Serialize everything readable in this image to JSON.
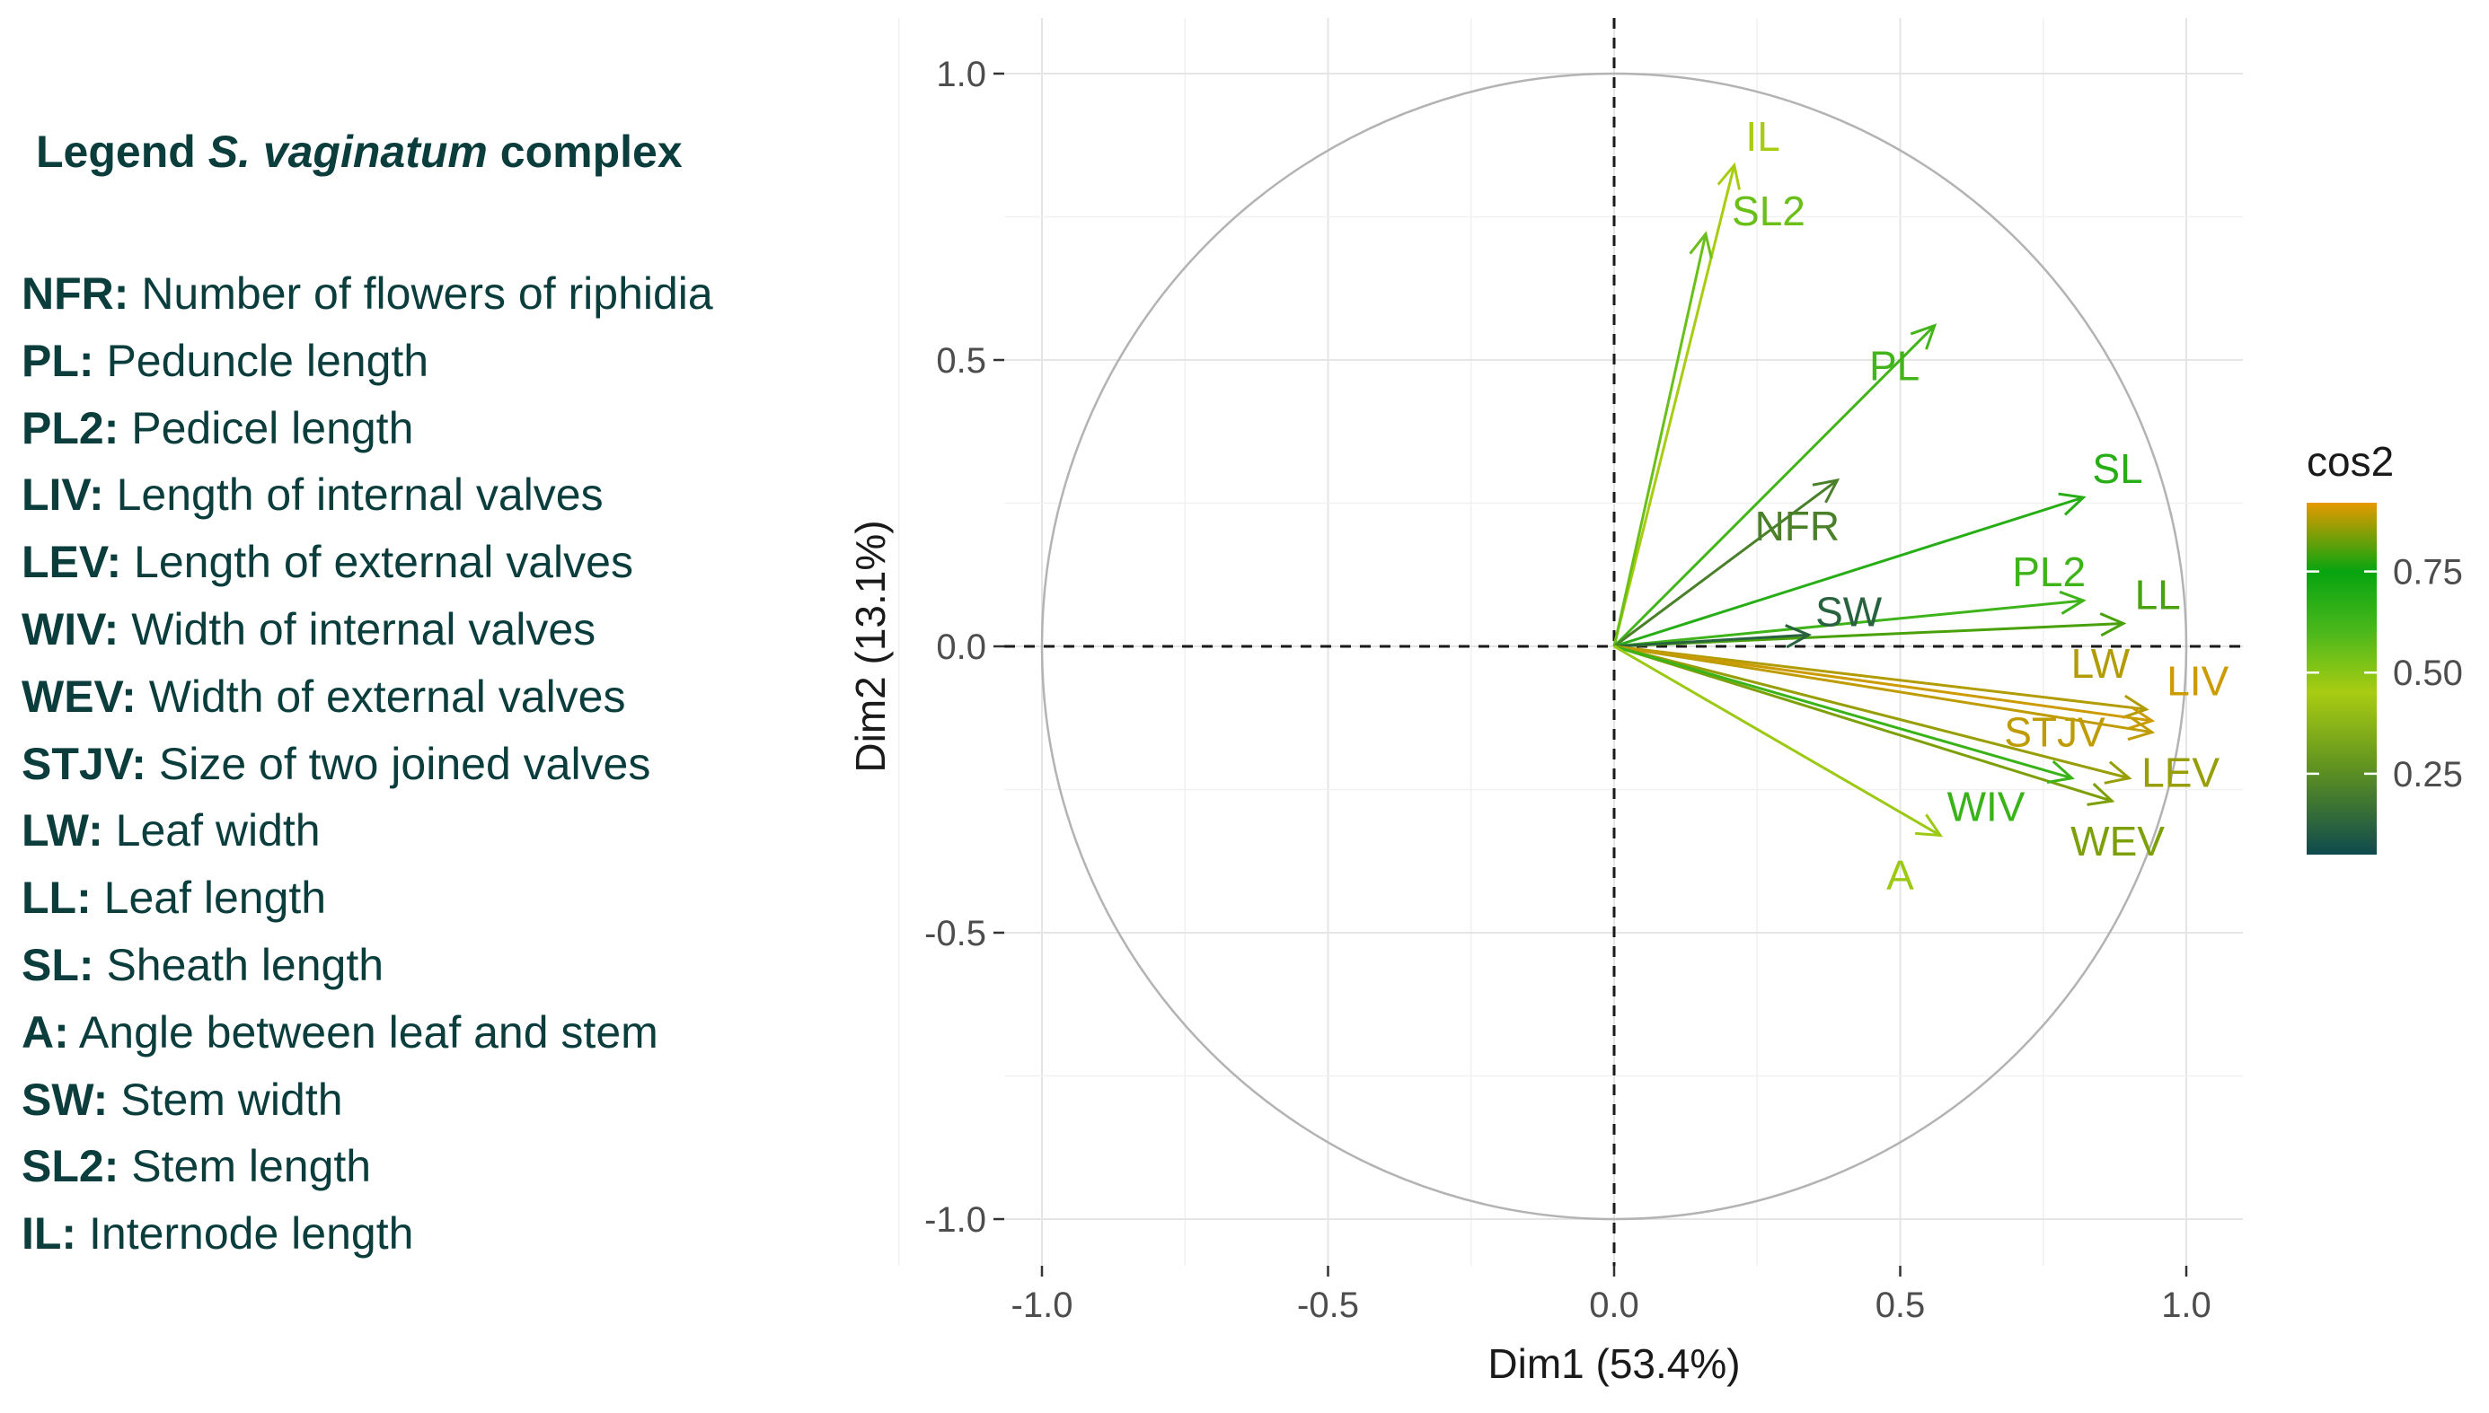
{
  "legend": {
    "title_prefix": "Legend ",
    "title_species": "S. vaginatum",
    "title_suffix": " complex",
    "items": [
      {
        "code": "NFR:",
        "description": "Number of flowers of riphidia"
      },
      {
        "code": "PL:",
        "description": "Peduncle length"
      },
      {
        "code": "PL2:",
        "description": "Pedicel length"
      },
      {
        "code": "LIV:",
        "description": "Length of internal valves"
      },
      {
        "code": "LEV:",
        "description": "Length of external valves"
      },
      {
        "code": "WIV:",
        "description": "Width of internal valves"
      },
      {
        "code": "WEV:",
        "description": "Width of external valves"
      },
      {
        "code": "STJV:",
        "description": "Size of two joined valves"
      },
      {
        "code": "LW:",
        "description": "Leaf width"
      },
      {
        "code": "LL:",
        "description": "Leaf length"
      },
      {
        "code": "SL:",
        "description": "Sheath length"
      },
      {
        "code": "A:",
        "description": "Angle between leaf and stem"
      },
      {
        "code": "SW:",
        "description": "Stem width"
      },
      {
        "code": "SL2:",
        "description": "Stem length"
      },
      {
        "code": "IL:",
        "description": "Internode length"
      }
    ]
  },
  "chart_data": {
    "type": "pca-variables-correlation-circle",
    "xlabel": "Dim1 (53.4%)",
    "ylabel": "Dim2 (13.1%)",
    "xlim": [
      -1.1,
      1.1
    ],
    "ylim": [
      -1.05,
      1.07
    ],
    "x_ticks": [
      -1.0,
      -0.5,
      0.0,
      0.5,
      1.0
    ],
    "x_tick_labels": [
      "-1.0",
      "-0.5",
      "0.0",
      "0.5",
      "1.0"
    ],
    "y_ticks": [
      -1.0,
      -0.5,
      0.0,
      0.5,
      1.0
    ],
    "y_tick_labels": [
      "-1.0",
      "-0.5",
      "0.0",
      "0.5",
      "1.0"
    ],
    "grid": true,
    "unit_circle": true,
    "reference_lines": "dashed at x=0 and y=0",
    "color_variable": "cos2",
    "colorbar": {
      "title": "cos2",
      "range": [
        0.05,
        0.92
      ],
      "ticks": [
        0.25,
        0.5,
        0.75
      ],
      "tick_labels": [
        "0.25",
        "0.50",
        "0.75"
      ],
      "gradient": [
        {
          "value": 0.05,
          "color": "#0e4a4e"
        },
        {
          "value": 0.25,
          "color": "#5a8e22"
        },
        {
          "value": 0.45,
          "color": "#a8cc12"
        },
        {
          "value": 0.6,
          "color": "#4cb81c"
        },
        {
          "value": 0.75,
          "color": "#07a410"
        },
        {
          "value": 0.92,
          "color": "#e69a00"
        }
      ]
    },
    "variables": [
      {
        "name": "IL",
        "x": 0.21,
        "y": 0.84,
        "cos2": 0.45,
        "label_x": 0.26,
        "label_y": 0.89
      },
      {
        "name": "SL2",
        "x": 0.16,
        "y": 0.72,
        "cos2": 0.55,
        "label_x": 0.27,
        "label_y": 0.76
      },
      {
        "name": "PL",
        "x": 0.56,
        "y": 0.56,
        "cos2": 0.62,
        "label_x": 0.49,
        "label_y": 0.49
      },
      {
        "name": "NFR",
        "x": 0.39,
        "y": 0.29,
        "cos2": 0.21,
        "label_x": 0.32,
        "label_y": 0.21
      },
      {
        "name": "SL",
        "x": 0.82,
        "y": 0.26,
        "cos2": 0.68,
        "label_x": 0.88,
        "label_y": 0.31
      },
      {
        "name": "PL2",
        "x": 0.82,
        "y": 0.08,
        "cos2": 0.63,
        "label_x": 0.76,
        "label_y": 0.13
      },
      {
        "name": "LL",
        "x": 0.89,
        "y": 0.04,
        "cos2": 0.8,
        "label_x": 0.95,
        "label_y": 0.09
      },
      {
        "name": "SW",
        "x": 0.34,
        "y": 0.02,
        "cos2": 0.12,
        "label_x": 0.41,
        "label_y": 0.06
      },
      {
        "name": "LW",
        "x": 0.93,
        "y": -0.11,
        "cos2": 0.88,
        "label_x": 0.85,
        "label_y": -0.03
      },
      {
        "name": "LIV",
        "x": 0.94,
        "y": -0.13,
        "cos2": 0.9,
        "label_x": 1.02,
        "label_y": -0.06
      },
      {
        "name": "STJV",
        "x": 0.94,
        "y": -0.15,
        "cos2": 0.89,
        "label_x": 0.77,
        "label_y": -0.15
      },
      {
        "name": "LEV",
        "x": 0.9,
        "y": -0.23,
        "cos2": 0.86,
        "label_x": 0.99,
        "label_y": -0.22
      },
      {
        "name": "WEV",
        "x": 0.87,
        "y": -0.27,
        "cos2": 0.84,
        "label_x": 0.88,
        "label_y": -0.34
      },
      {
        "name": "WIV",
        "x": 0.8,
        "y": -0.23,
        "cos2": 0.64,
        "label_x": 0.65,
        "label_y": -0.28
      },
      {
        "name": "A",
        "x": 0.57,
        "y": -0.33,
        "cos2": 0.47,
        "label_x": 0.5,
        "label_y": -0.4
      }
    ]
  }
}
